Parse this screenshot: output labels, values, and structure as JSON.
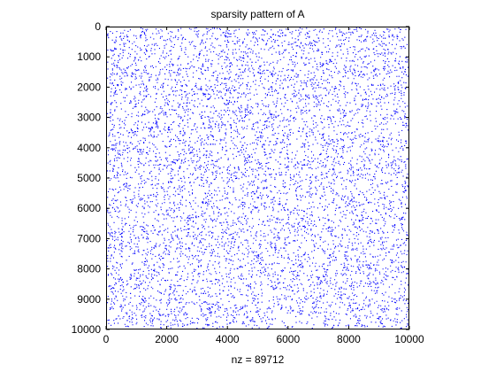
{
  "chart_data": {
    "type": "scatter",
    "subtype": "spy",
    "title": "sparsity pattern of A",
    "xlabel": "nz = 89712",
    "ylabel": "",
    "xlim": [
      0,
      10000
    ],
    "ylim": [
      0,
      10000
    ],
    "y_direction": "reversed",
    "x_ticks": [
      0,
      2000,
      4000,
      6000,
      8000,
      10000
    ],
    "y_ticks": [
      0,
      1000,
      2000,
      3000,
      4000,
      5000,
      6000,
      7000,
      8000,
      9000,
      10000
    ],
    "x_tick_labels": [
      "0",
      "2000",
      "4000",
      "6000",
      "8000",
      "10000"
    ],
    "y_tick_labels": [
      "0",
      "1000",
      "2000",
      "3000",
      "4000",
      "5000",
      "6000",
      "7000",
      "8000",
      "9000",
      "10000"
    ],
    "matrix_size": [
      10000,
      10000
    ],
    "nonzeros": 89712,
    "distribution": "uniform random",
    "marker_color": "#0000ff",
    "background_color": "#ffffff",
    "grid": false
  }
}
